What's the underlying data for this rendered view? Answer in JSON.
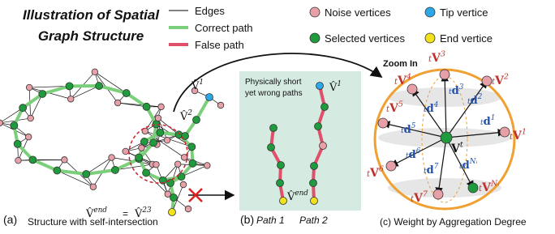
{
  "title": [
    "Illustration of Spatial",
    "Graph Structure"
  ],
  "legend": [
    {
      "kind": "line",
      "label": "Edges",
      "color": "#000000"
    },
    {
      "kind": "line",
      "label": "Correct path",
      "color": "#7ccf7a"
    },
    {
      "kind": "line",
      "label": "False path",
      "color": "#e0506a"
    },
    {
      "kind": "dot",
      "label": "Noise vertices",
      "color": "#e8a0a8"
    },
    {
      "kind": "dot",
      "label": "Selected vertices",
      "color": "#1f9a3c"
    },
    {
      "kind": "dot",
      "label": "Tip vertice",
      "color": "#2aa8e8"
    },
    {
      "kind": "dot",
      "label": "End vertice",
      "color": "#f2e21c"
    }
  ],
  "panel_a": {
    "tag": "(a)",
    "caption": "Structure with self-intersection",
    "v1": {
      "base": "V̂",
      "sup": "1"
    },
    "v2": {
      "base": "V̂",
      "sup": "2"
    },
    "v_end": {
      "base": "V̂",
      "sup": "end"
    },
    "equals": "=",
    "v23": {
      "base": "V̂",
      "sup": "23"
    }
  },
  "panel_b": {
    "tag": "(b)",
    "note": [
      "Physically short",
      "yet wrong paths"
    ],
    "v1": {
      "base": "V̂",
      "sup": "1"
    },
    "v_end": {
      "base": "V̂",
      "sup": "end"
    },
    "path1": "Path 1",
    "path2": "Path 2"
  },
  "panel_c": {
    "zoom": "Zoom In",
    "caption": "(c) Weight by Aggregation Degree",
    "center": {
      "base": "V",
      "sup": "t"
    },
    "neighbors": [
      {
        "pre": "t",
        "base": "V",
        "sup": "1"
      },
      {
        "pre": "t",
        "base": "V",
        "sup": "2"
      },
      {
        "pre": "t",
        "base": "V",
        "sup": "3"
      },
      {
        "pre": "t",
        "base": "V",
        "sup": "4"
      },
      {
        "pre": "t",
        "base": "V",
        "sup": "5"
      },
      {
        "pre": "t",
        "base": "V",
        "sup": "6"
      },
      {
        "pre": "t",
        "base": "V",
        "sup": "7"
      },
      {
        "pre": "t",
        "base": "V",
        "sup": "Nᵢ"
      }
    ],
    "directions": [
      {
        "pre": "t",
        "base": "d",
        "sup": "1"
      },
      {
        "pre": "t",
        "base": "d",
        "sup": "2"
      },
      {
        "pre": "t",
        "base": "d",
        "sup": "3"
      },
      {
        "pre": "t",
        "base": "d",
        "sup": "4"
      },
      {
        "pre": "t",
        "base": "d",
        "sup": "5"
      },
      {
        "pre": "t",
        "base": "d",
        "sup": "6"
      },
      {
        "pre": "t",
        "base": "d",
        "sup": "7"
      },
      {
        "pre": "t",
        "base": "d",
        "sup": "Nᵢ"
      }
    ]
  }
}
